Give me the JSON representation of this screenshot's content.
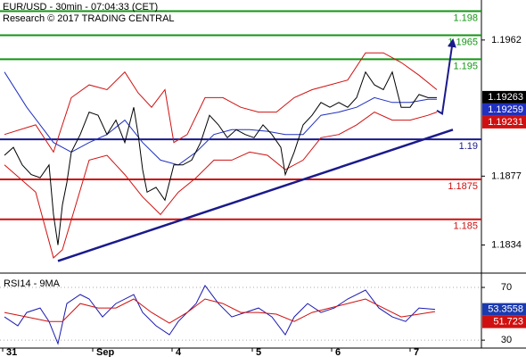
{
  "chart_data": [
    {
      "type": "line",
      "title": "EUR/USD - 30min - 07:04:33 (CET)",
      "subtitle": "Research © 2017 TRADING CENTRAL",
      "xlim": [
        0,
        270
      ],
      "ylim": [
        1.1817,
        1.1987
      ],
      "yticks": [
        1.1962,
        1.1877,
        1.1834
      ],
      "series": [
        {
          "color": "#d01010",
          "x": [
            2.5,
            20,
            30,
            40,
            50,
            60,
            70,
            77.5,
            85,
            92.5,
            97.5,
            105,
            115,
            125,
            135,
            145,
            155,
            165,
            175,
            185,
            195,
            205,
            215,
            225,
            235,
            245
          ],
          "values": [
            1.1903,
            1.1909,
            1.1892,
            1.1926,
            1.1934,
            1.1931,
            1.1942,
            1.1929,
            1.192,
            1.1931,
            1.1898,
            1.1903,
            1.1926,
            1.1926,
            1.192,
            1.1917,
            1.1917,
            1.1926,
            1.1931,
            1.1934,
            1.1937,
            1.1954,
            1.1954,
            1.1948,
            1.194,
            1.1931
          ]
        },
        {
          "color": "#d01010",
          "x": [
            2.5,
            20,
            30,
            35,
            42.5,
            50,
            60,
            70,
            80,
            90,
            100,
            110,
            120,
            130,
            140,
            150,
            160,
            170,
            180,
            190,
            200,
            210,
            220,
            230,
            240,
            245
          ],
          "values": [
            1.1884,
            1.1867,
            1.1826,
            1.1831,
            1.1859,
            1.1887,
            1.189,
            1.1878,
            1.1864,
            1.1853,
            1.1867,
            1.1876,
            1.1887,
            1.1887,
            1.1892,
            1.189,
            1.1881,
            1.1887,
            1.1901,
            1.1903,
            1.1909,
            1.1917,
            1.1912,
            1.1912,
            1.1915,
            1.1917
          ]
        },
        {
          "color": "#2030c0",
          "x": [
            2.5,
            15,
            30,
            40,
            50,
            60,
            70,
            80,
            90,
            100,
            110,
            120,
            130,
            140,
            150,
            160,
            170,
            180,
            190,
            200,
            210,
            220,
            230,
            240,
            245
          ],
          "values": [
            1.1942,
            1.192,
            1.1898,
            1.1892,
            1.1898,
            1.1903,
            1.1912,
            1.1898,
            1.1887,
            1.1884,
            1.1892,
            1.1903,
            1.1906,
            1.1906,
            1.1905,
            1.1903,
            1.1903,
            1.1915,
            1.1917,
            1.192,
            1.1926,
            1.1923,
            1.1923,
            1.1925,
            1.1925
          ]
        },
        {
          "color": "#000000",
          "x": [
            2.5,
            7.5,
            12.5,
            17.5,
            22.5,
            27.5,
            30,
            32.5,
            35,
            37.5,
            40,
            45,
            50,
            55,
            60,
            65,
            70,
            75,
            77.5,
            80,
            82.5,
            87.5,
            92.5,
            97.5,
            102.5,
            107.5,
            112.5,
            117.5,
            122.5,
            127.5,
            132.5,
            137.5,
            142.5,
            147.5,
            152.5,
            157.5,
            160,
            165,
            170,
            175,
            180,
            185,
            190,
            195,
            200,
            205,
            210,
            215,
            220,
            225,
            230,
            235,
            240,
            245
          ],
          "values": [
            1.189,
            1.1895,
            1.1884,
            1.1878,
            1.1876,
            1.1884,
            1.1853,
            1.1834,
            1.1859,
            1.1873,
            1.1892,
            1.1903,
            1.1917,
            1.1915,
            1.1903,
            1.1912,
            1.1898,
            1.192,
            1.1903,
            1.1881,
            1.1867,
            1.187,
            1.1862,
            1.1884,
            1.1884,
            1.1887,
            1.1898,
            1.1915,
            1.1909,
            1.1901,
            1.1906,
            1.1903,
            1.1901,
            1.1909,
            1.1903,
            1.1895,
            1.1878,
            1.1892,
            1.1909,
            1.1915,
            1.1923,
            1.192,
            1.1923,
            1.192,
            1.1926,
            1.1942,
            1.1934,
            1.1931,
            1.1942,
            1.192,
            1.192,
            1.1928,
            1.1926,
            1.1926
          ]
        },
        {
          "color": "#1a1a8c",
          "x": [
            32.5,
            254
          ],
          "values": [
            1.1824,
            1.1906
          ]
        },
        {
          "color": "#1a1a8c",
          "arrow": true,
          "x": [
            245,
            248,
            254
          ],
          "values": [
            1.1918,
            1.1916,
            1.1962
          ]
        }
      ],
      "levels": [
        {
          "value": 1.198,
          "color": "#139613"
        },
        {
          "value": 1.1965,
          "color": "#139613"
        },
        {
          "value": 1.195,
          "color": "#139613"
        },
        {
          "value": 1.19,
          "color": "#1a1a8c"
        },
        {
          "value": 1.1875,
          "color": "#cc1010"
        },
        {
          "value": 1.185,
          "color": "#cc1010"
        }
      ],
      "price_labels": [
        {
          "value": 1.19263,
          "color": "#000000"
        },
        {
          "value": 1.19259,
          "color": "#2030c0"
        },
        {
          "value": 1.19231,
          "color": "#d01010"
        }
      ]
    },
    {
      "type": "line",
      "title": "RSI14 - 9MA",
      "xlim": [
        0,
        270
      ],
      "xticks": [
        {
          "value": 1.5,
          "label": "31"
        },
        {
          "value": 52,
          "label": "Sep"
        },
        {
          "value": 96.5,
          "label": "4"
        },
        {
          "value": 141.5,
          "label": "5"
        },
        {
          "value": 186,
          "label": "6"
        },
        {
          "value": 230,
          "label": "7"
        }
      ],
      "ylim": [
        24,
        79.5
      ],
      "yticks": [
        70,
        30
      ],
      "series": [
        {
          "color": "#1a1ab0",
          "x": [
            2.5,
            10,
            15,
            22.5,
            27.5,
            32.5,
            37.5,
            45,
            50,
            57.5,
            65,
            75,
            80,
            87.5,
            95,
            100,
            110,
            115,
            122.5,
            130,
            137.5,
            145,
            152.5,
            160,
            165,
            172.5,
            180,
            187.5,
            195,
            205,
            212.5,
            220,
            227.5,
            235,
            244
          ],
          "values": [
            47.6,
            40.9,
            51.0,
            54.4,
            44.2,
            27.3,
            57.8,
            64.6,
            61.2,
            47.6,
            57.8,
            64.6,
            51.0,
            40.9,
            34.1,
            44.2,
            57.8,
            71.4,
            57.8,
            47.6,
            51.0,
            54.4,
            47.6,
            34.1,
            47.6,
            57.8,
            51.0,
            54.4,
            61.2,
            68.0,
            54.4,
            47.6,
            44.2,
            54.4,
            53.4
          ]
        },
        {
          "color": "#d01010",
          "x": [
            2.5,
            15,
            27.5,
            35,
            45,
            55,
            65,
            75,
            85,
            95,
            105,
            115,
            125,
            135,
            145,
            155,
            165,
            175,
            185,
            195,
            205,
            215,
            225,
            235,
            244
          ],
          "values": [
            51.0,
            47.6,
            44.2,
            44.2,
            57.8,
            54.4,
            54.4,
            61.2,
            51.0,
            42.9,
            51.0,
            61.2,
            57.8,
            51.0,
            51.0,
            49.7,
            44.2,
            51.0,
            54.4,
            57.8,
            61.2,
            54.4,
            47.6,
            49.7,
            51.7
          ]
        }
      ],
      "price_labels": [
        {
          "value": 53.3558,
          "color": "#1a3ab0"
        },
        {
          "value": 51.723,
          "color": "#d01010"
        }
      ]
    }
  ]
}
